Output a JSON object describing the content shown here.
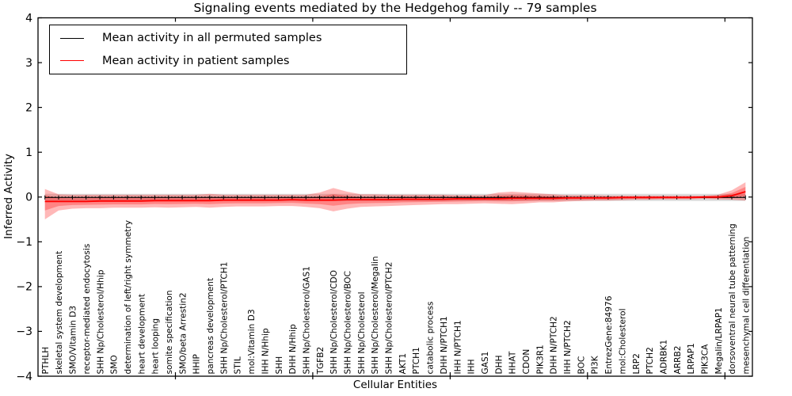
{
  "chart_data": {
    "type": "line",
    "title": "Signaling events mediated by the Hedgehog family -- 79 samples",
    "xlabel": "Cellular Entities",
    "ylabel": "Inferred Activity",
    "ylim": [
      -4,
      4
    ],
    "yticks": [
      -4,
      -3,
      -2,
      -1,
      0,
      1,
      2,
      3,
      4
    ],
    "xticks": [
      10,
      20,
      30,
      40,
      50
    ],
    "grid": false,
    "legend_position": "upper left",
    "legend": [
      {
        "label": "Mean activity in all permuted samples",
        "color": "#000000"
      },
      {
        "label": "Mean activity in patient samples",
        "color": "#ff0000"
      }
    ],
    "categories": [
      "PTHLH",
      "skeletal system development",
      "SMO/Vitamin D3",
      "receptor-mediated endocytosis",
      "SHH Np/Cholesterol/Hhip",
      "SMO",
      "determination of left/right symmetry",
      "heart development",
      "heart looping",
      "somite specification",
      "SMO/beta Arrestin2",
      "HHIP",
      "pancreas development",
      "SHH Np/Cholesterol/PTCH1",
      "STIL",
      "mol:Vitamin D3",
      "IHH N/Hhip",
      "SHH",
      "DHH N/Hhip",
      "SHH Np/Cholesterol/GAS1",
      "TGFB2",
      "SHH Np/Cholesterol/CDO",
      "SHH Np/Cholesterol/BOC",
      "SHH Np/Cholesterol",
      "SHH Np/Cholesterol/Megalin",
      "SHH Np/Cholesterol/PTCH2",
      "AKT1",
      "PTCH1",
      "catabolic process",
      "DHH N/PTCH1",
      "IHH N/PTCH1",
      "IHH",
      "GAS1",
      "DHH",
      "HHAT",
      "CDON",
      "PIK3R1",
      "DHH N/PTCH2",
      "IHH N/PTCH2",
      "BOC",
      "PI3K",
      "EntrezGene:84976",
      "mol:Cholesterol",
      "LRP2",
      "PTCH2",
      "ADRBK1",
      "ARRB2",
      "LRPAP1",
      "PIK3CA",
      "Megalin/LRPAP1",
      "dorsoventral neural tube patterning",
      "mesenchymal cell differentiation"
    ],
    "series": [
      {
        "name": "Mean activity in all permuted samples",
        "color": "#000000",
        "constant": -0.01,
        "marker": "|"
      },
      {
        "name": "Mean activity in patient samples",
        "color": "#ff0000",
        "values": [
          -0.1,
          -0.1,
          -0.1,
          -0.1,
          -0.09,
          -0.09,
          -0.09,
          -0.09,
          -0.08,
          -0.08,
          -0.08,
          -0.08,
          -0.08,
          -0.07,
          -0.07,
          -0.07,
          -0.07,
          -0.07,
          -0.06,
          -0.07,
          -0.07,
          -0.07,
          -0.06,
          -0.06,
          -0.06,
          -0.06,
          -0.05,
          -0.05,
          -0.05,
          -0.05,
          -0.04,
          -0.04,
          -0.04,
          -0.04,
          -0.03,
          -0.03,
          -0.03,
          -0.03,
          -0.02,
          -0.02,
          -0.02,
          -0.02,
          -0.01,
          -0.01,
          -0.01,
          -0.01,
          -0.01,
          -0.01,
          0.0,
          0.0,
          0.03,
          0.12
        ]
      }
    ],
    "patient_band": {
      "color": "#ff0000",
      "opacity": 0.28,
      "inner_scale": 0.5,
      "upper": [
        0.18,
        0.06,
        0.05,
        0.05,
        0.05,
        0.05,
        0.05,
        0.05,
        0.05,
        0.05,
        0.05,
        0.05,
        0.07,
        0.05,
        0.05,
        0.05,
        0.05,
        0.05,
        0.05,
        0.05,
        0.1,
        0.2,
        0.12,
        0.06,
        0.06,
        0.05,
        0.05,
        0.05,
        0.05,
        0.05,
        0.04,
        0.04,
        0.04,
        0.1,
        0.12,
        0.1,
        0.08,
        0.06,
        0.04,
        0.04,
        0.04,
        0.03,
        0.03,
        0.03,
        0.03,
        0.03,
        0.03,
        0.03,
        0.03,
        0.05,
        0.15,
        0.33
      ],
      "lower": [
        -0.5,
        -0.3,
        -0.26,
        -0.25,
        -0.25,
        -0.24,
        -0.24,
        -0.24,
        -0.23,
        -0.24,
        -0.23,
        -0.22,
        -0.24,
        -0.22,
        -0.21,
        -0.21,
        -0.21,
        -0.2,
        -0.2,
        -0.22,
        -0.25,
        -0.32,
        -0.26,
        -0.22,
        -0.21,
        -0.2,
        -0.19,
        -0.18,
        -0.17,
        -0.16,
        -0.16,
        -0.15,
        -0.14,
        -0.15,
        -0.16,
        -0.14,
        -0.12,
        -0.12,
        -0.1,
        -0.09,
        -0.08,
        -0.08,
        -0.07,
        -0.06,
        -0.06,
        -0.05,
        -0.05,
        -0.05,
        -0.04,
        -0.05,
        -0.06,
        -0.08
      ]
    },
    "permuted_band": {
      "color": "#bdbdbd",
      "opacity": 0.55,
      "upper": 0.07,
      "lower": -0.09
    },
    "zero_line": {
      "style": "dotted",
      "color": "#000000",
      "y": 0
    }
  }
}
